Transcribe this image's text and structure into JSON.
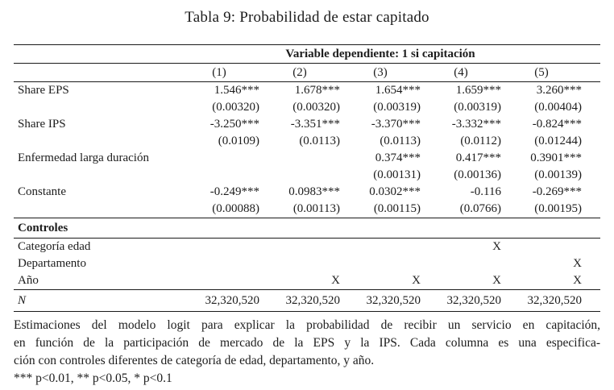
{
  "title": "Tabla 9: Probabilidad de estar capitado",
  "table": {
    "dep_var_header": "Variable dependiente: 1 si capitación",
    "column_headers": [
      "(1)",
      "(2)",
      "(3)",
      "(4)",
      "(5)"
    ],
    "coefficient_rows": [
      {
        "label": "Share EPS",
        "values": [
          "1.546***",
          "1.678***",
          "1.654***",
          "1.659***",
          "3.260***"
        ],
        "se": [
          "(0.00320)",
          "(0.00320)",
          "(0.00319)",
          "(0.00319)",
          "(0.00404)"
        ]
      },
      {
        "label": "Share IPS",
        "values": [
          "-3.250***",
          "-3.351***",
          "-3.370***",
          "-3.332***",
          "-0.824***"
        ],
        "se": [
          "(0.0109)",
          "(0.0113)",
          "(0.0113)",
          "(0.0112)",
          "(0.01244)"
        ]
      },
      {
        "label": "Enfermedad larga duración",
        "values": [
          "",
          "",
          "0.374***",
          "0.417***",
          "0.3901***"
        ],
        "se": [
          "",
          "",
          "(0.00131)",
          "(0.00136)",
          "(0.00139)"
        ]
      },
      {
        "label": "Constante",
        "values": [
          "-0.249***",
          "0.0983***",
          "0.0302***",
          "-0.116",
          "-0.269***"
        ],
        "se": [
          "(0.00088)",
          "(0.00113)",
          "(0.00115)",
          "(0.0766)",
          "(0.00195)"
        ]
      }
    ],
    "controls_header": "Controles",
    "control_rows": [
      {
        "label": "Categoría edad",
        "marks": [
          "",
          "",
          "",
          "X",
          ""
        ]
      },
      {
        "label": "Departamento",
        "marks": [
          "",
          "",
          "",
          "",
          "X"
        ]
      },
      {
        "label": "Año",
        "marks": [
          "",
          "X",
          "X",
          "X",
          "X"
        ]
      }
    ],
    "n_row": {
      "label": "N",
      "values": [
        "32,320,520",
        "32,320,520",
        "32,320,520",
        "32,320,520",
        "32,320,520"
      ]
    }
  },
  "notes": {
    "lines": [
      "Estimaciones del modelo logit para explicar la probabilidad de recibir un servicio en capitación,",
      "en función de la participación de mercado de la EPS y la IPS. Cada columna es una especifica-",
      "ción con controles diferentes de categoría de edad, departamento, y año."
    ],
    "significance": "*** p<0.01, ** p<0.05, * p<0.1"
  }
}
